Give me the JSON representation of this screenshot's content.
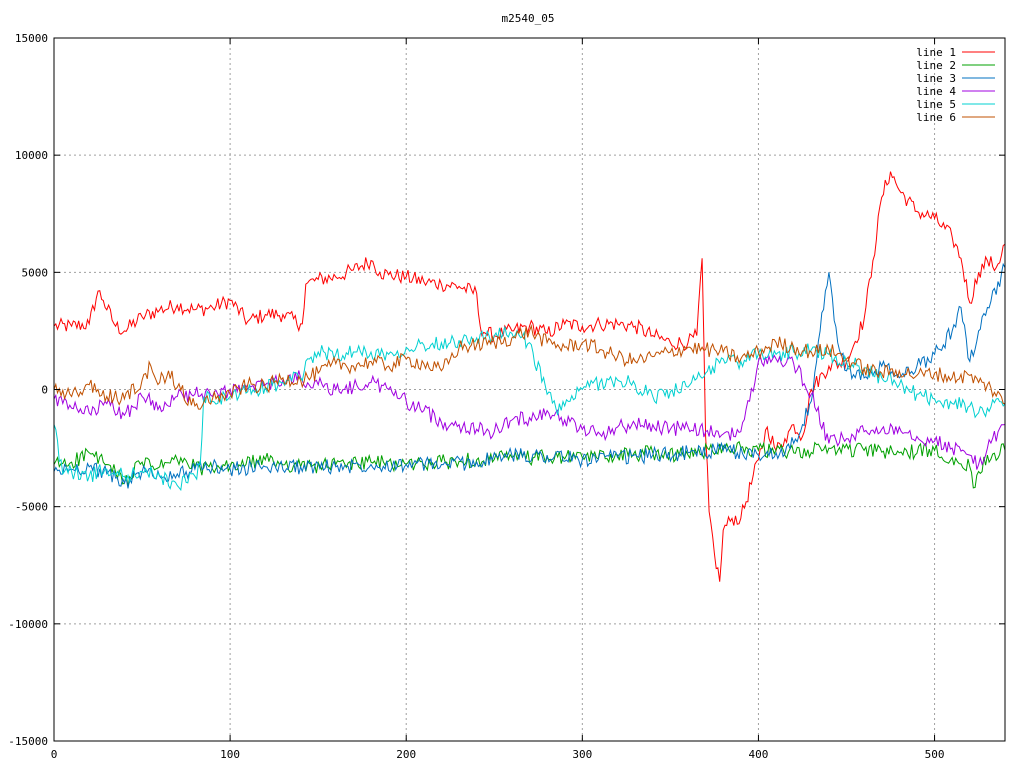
{
  "chart_data": {
    "type": "line",
    "title": "m2540_05",
    "xlabel": "",
    "ylabel": "",
    "xlim": [
      0,
      540
    ],
    "ylim": [
      -15000,
      15000
    ],
    "xticks": [
      0,
      100,
      200,
      300,
      400,
      500
    ],
    "yticks": [
      -15000,
      -10000,
      -5000,
      0,
      5000,
      10000,
      15000
    ],
    "xtick_labels": [
      "0",
      "100",
      "200",
      "300",
      "400",
      "500"
    ],
    "ytick_labels": [
      "-15000",
      "-10000",
      "-5000",
      "0",
      "5000",
      "10000",
      "15000"
    ],
    "grid": true,
    "legend_position": "top-right",
    "series": [
      {
        "name": "line 1",
        "color": "#ff0000",
        "x": [
          0,
          10,
          20,
          25,
          28,
          35,
          40,
          50,
          60,
          70,
          80,
          90,
          100,
          110,
          120,
          130,
          140,
          141,
          143,
          150,
          160,
          170,
          180,
          185,
          190,
          200,
          210,
          220,
          230,
          240,
          242,
          245,
          250,
          260,
          270,
          280,
          290,
          300,
          310,
          320,
          330,
          340,
          350,
          360,
          365,
          368,
          370,
          372,
          375,
          378,
          380,
          385,
          390,
          400,
          405,
          410,
          415,
          420,
          425,
          430,
          440,
          450,
          460,
          465,
          470,
          475,
          480,
          490,
          500,
          510,
          515,
          520,
          525,
          530,
          535,
          540
        ],
        "y": [
          2700,
          2700,
          2800,
          4200,
          3800,
          2700,
          2500,
          3100,
          3400,
          3600,
          3400,
          3500,
          3800,
          2900,
          3200,
          3200,
          2800,
          2800,
          4500,
          4700,
          4800,
          5100,
          5500,
          5000,
          4900,
          4800,
          4600,
          4500,
          4400,
          4100,
          2700,
          2400,
          2300,
          2500,
          2700,
          2400,
          2800,
          2700,
          2800,
          2800,
          2700,
          2300,
          2000,
          2000,
          2300,
          5600,
          -2000,
          -5200,
          -7000,
          -8200,
          -6000,
          -5500,
          -5500,
          -3000,
          -1600,
          -2600,
          -2100,
          -1500,
          -2000,
          0,
          1000,
          1200,
          3000,
          5500,
          8200,
          9300,
          8500,
          7600,
          7300,
          6500,
          5600,
          3700,
          5000,
          5500,
          5200,
          6200
        ]
      },
      {
        "name": "line 2",
        "color": "#00a000",
        "x": [
          0,
          10,
          20,
          30,
          40,
          50,
          60,
          70,
          80,
          90,
          100,
          120,
          140,
          160,
          180,
          200,
          220,
          240,
          260,
          280,
          300,
          320,
          340,
          360,
          380,
          400,
          420,
          440,
          460,
          480,
          500,
          510,
          520,
          522,
          525,
          530,
          540
        ],
        "y": [
          -3200,
          -3100,
          -2700,
          -3200,
          -4000,
          -3100,
          -3300,
          -3000,
          -3300,
          -3400,
          -3300,
          -3000,
          -3300,
          -3200,
          -3100,
          -3200,
          -3100,
          -3000,
          -2900,
          -2900,
          -2900,
          -2800,
          -2700,
          -2800,
          -2400,
          -2600,
          -2700,
          -2500,
          -2600,
          -2700,
          -2600,
          -2900,
          -3300,
          -4200,
          -3500,
          -2800,
          -2600
        ]
      },
      {
        "name": "line 3",
        "color": "#0070c0",
        "x": [
          0,
          10,
          20,
          30,
          40,
          50,
          60,
          70,
          80,
          90,
          100,
          120,
          140,
          160,
          180,
          200,
          220,
          240,
          260,
          280,
          300,
          320,
          340,
          360,
          380,
          400,
          410,
          420,
          425,
          430,
          435,
          440,
          445,
          450,
          460,
          470,
          480,
          490,
          500,
          510,
          515,
          520,
          525,
          530,
          540
        ],
        "y": [
          -3500,
          -3400,
          -3300,
          -3600,
          -4000,
          -3500,
          -3700,
          -3600,
          -3400,
          -3300,
          -3400,
          -3300,
          -3300,
          -3300,
          -3200,
          -3200,
          -3200,
          -3100,
          -2800,
          -2800,
          -3000,
          -2900,
          -2800,
          -2700,
          -2600,
          -2800,
          -2700,
          -2300,
          -1500,
          -500,
          2500,
          5000,
          2000,
          800,
          500,
          1000,
          500,
          1000,
          1500,
          2500,
          3500,
          1200,
          2500,
          3500,
          5200
        ]
      },
      {
        "name": "line 4",
        "color": "#a000e0",
        "x": [
          0,
          10,
          20,
          30,
          40,
          50,
          60,
          70,
          80,
          90,
          100,
          110,
          120,
          130,
          140,
          150,
          160,
          170,
          180,
          190,
          200,
          210,
          220,
          230,
          240,
          250,
          260,
          270,
          280,
          290,
          300,
          310,
          320,
          330,
          340,
          350,
          360,
          370,
          380,
          390,
          395,
          400,
          410,
          420,
          430,
          440,
          450,
          460,
          470,
          480,
          490,
          500,
          510,
          520,
          525,
          530,
          540
        ],
        "y": [
          -400,
          -800,
          -1000,
          -600,
          -1100,
          -300,
          -700,
          -300,
          -200,
          -300,
          0,
          0,
          200,
          400,
          500,
          200,
          0,
          100,
          300,
          0,
          -500,
          -900,
          -1400,
          -1500,
          -1700,
          -1800,
          -1300,
          -1200,
          -900,
          -1300,
          -1700,
          -1900,
          -1600,
          -1500,
          -1500,
          -1700,
          -1600,
          -1800,
          -1900,
          -1800,
          -500,
          1200,
          1300,
          1100,
          -200,
          -2300,
          -2100,
          -1800,
          -1700,
          -1600,
          -2000,
          -2200,
          -2500,
          -2800,
          -3200,
          -2500,
          -1500
        ]
      },
      {
        "name": "line 5",
        "color": "#00d0d0",
        "x": [
          0,
          5,
          10,
          20,
          30,
          40,
          50,
          60,
          70,
          80,
          83,
          85,
          90,
          100,
          110,
          120,
          130,
          140,
          145,
          150,
          160,
          170,
          180,
          190,
          200,
          210,
          220,
          230,
          240,
          250,
          260,
          270,
          280,
          285,
          290,
          300,
          310,
          320,
          330,
          340,
          350,
          360,
          370,
          380,
          390,
          400,
          410,
          420,
          430,
          440,
          450,
          460,
          470,
          480,
          490,
          500,
          510,
          520,
          525,
          530,
          540
        ],
        "y": [
          -1500,
          -3600,
          -3500,
          -3700,
          -3400,
          -3700,
          -3500,
          -3700,
          -4100,
          -3700,
          -3200,
          -300,
          -500,
          -300,
          -100,
          100,
          300,
          500,
          1300,
          1600,
          1500,
          1600,
          1600,
          1500,
          1800,
          1900,
          2000,
          2100,
          2200,
          2300,
          2400,
          2000,
          -200,
          -800,
          -700,
          0,
          300,
          400,
          200,
          -300,
          -100,
          100,
          700,
          1300,
          1200,
          1500,
          1500,
          1600,
          1700,
          1500,
          1200,
          900,
          500,
          200,
          -200,
          -400,
          -600,
          -700,
          -1000,
          -800,
          -600
        ]
      },
      {
        "name": "line 6",
        "color": "#c05000",
        "x": [
          0,
          10,
          20,
          30,
          40,
          50,
          55,
          60,
          65,
          70,
          80,
          90,
          100,
          110,
          120,
          130,
          140,
          150,
          160,
          170,
          180,
          190,
          200,
          210,
          220,
          230,
          240,
          250,
          260,
          270,
          280,
          290,
          300,
          310,
          320,
          330,
          340,
          350,
          360,
          370,
          380,
          390,
          400,
          410,
          420,
          430,
          440,
          450,
          460,
          470,
          480,
          490,
          500,
          510,
          520,
          525,
          530,
          540
        ],
        "y": [
          0,
          -300,
          200,
          -300,
          -400,
          400,
          1000,
          300,
          800,
          100,
          -700,
          -400,
          -200,
          200,
          100,
          500,
          400,
          700,
          1100,
          1000,
          1200,
          1000,
          1300,
          1100,
          800,
          1800,
          1900,
          2000,
          2200,
          2500,
          2000,
          1800,
          2000,
          1700,
          1400,
          1200,
          1400,
          1600,
          1800,
          1700,
          1600,
          1300,
          1600,
          2000,
          1800,
          1600,
          1700,
          1300,
          900,
          700,
          800,
          600,
          700,
          500,
          600,
          300,
          200,
          -600
        ]
      }
    ]
  }
}
